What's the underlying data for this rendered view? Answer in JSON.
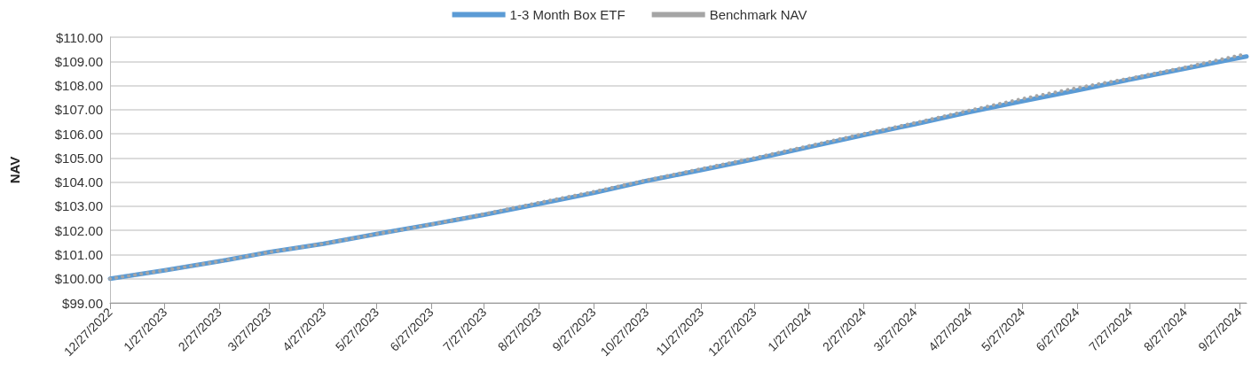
{
  "chart_data": {
    "type": "line",
    "ylabel": "NAV",
    "x": [
      "2022-12-27",
      "2023-01-27",
      "2023-02-27",
      "2023-03-27",
      "2023-04-27",
      "2023-05-27",
      "2023-06-27",
      "2023-07-27",
      "2023-08-27",
      "2023-09-27",
      "2023-10-27",
      "2023-11-27",
      "2023-12-27",
      "2024-01-27",
      "2024-02-27",
      "2024-03-27",
      "2024-04-27",
      "2024-05-27",
      "2024-06-27",
      "2024-07-27",
      "2024-08-27",
      "2024-09-27",
      "2024-10-01"
    ],
    "series": [
      {
        "name": "1-3 Month Box ETF",
        "color": "#5b9bd5",
        "line_style": "solid",
        "values": [
          100.0,
          100.35,
          100.72,
          101.1,
          101.45,
          101.85,
          102.25,
          102.65,
          103.1,
          103.55,
          104.05,
          104.5,
          104.95,
          105.45,
          105.95,
          106.4,
          106.9,
          107.35,
          107.8,
          108.25,
          108.7,
          109.15,
          109.2
        ]
      },
      {
        "name": "Benchmark NAV",
        "color": "#a5a5a5",
        "line_style": "dotted",
        "values": [
          100.0,
          100.35,
          100.72,
          101.1,
          101.45,
          101.85,
          102.25,
          102.68,
          103.15,
          103.6,
          104.08,
          104.55,
          105.0,
          105.5,
          106.0,
          106.45,
          106.97,
          107.45,
          107.9,
          108.3,
          108.75,
          109.25,
          109.3
        ]
      }
    ],
    "xlim": [
      "2022-12-27",
      "2024-10-01"
    ],
    "xticks": [
      {
        "value": "2022-12-27",
        "label": "12/27/2022"
      },
      {
        "value": "2023-01-27",
        "label": "1/27/2023"
      },
      {
        "value": "2023-02-27",
        "label": "2/27/2023"
      },
      {
        "value": "2023-03-27",
        "label": "3/27/2023"
      },
      {
        "value": "2023-04-27",
        "label": "4/27/2023"
      },
      {
        "value": "2023-05-27",
        "label": "5/27/2023"
      },
      {
        "value": "2023-06-27",
        "label": "6/27/2023"
      },
      {
        "value": "2023-07-27",
        "label": "7/27/2023"
      },
      {
        "value": "2023-08-27",
        "label": "8/27/2023"
      },
      {
        "value": "2023-09-27",
        "label": "9/27/2023"
      },
      {
        "value": "2023-10-27",
        "label": "10/27/2023"
      },
      {
        "value": "2023-11-27",
        "label": "11/27/2023"
      },
      {
        "value": "2023-12-27",
        "label": "12/27/2023"
      },
      {
        "value": "2024-01-27",
        "label": "1/27/2024"
      },
      {
        "value": "2024-02-27",
        "label": "2/27/2024"
      },
      {
        "value": "2024-03-27",
        "label": "3/27/2024"
      },
      {
        "value": "2024-04-27",
        "label": "4/27/2024"
      },
      {
        "value": "2024-05-27",
        "label": "5/27/2024"
      },
      {
        "value": "2024-06-27",
        "label": "6/27/2024"
      },
      {
        "value": "2024-07-27",
        "label": "7/27/2024"
      },
      {
        "value": "2024-08-27",
        "label": "8/27/2024"
      },
      {
        "value": "2024-09-27",
        "label": "9/27/2024"
      }
    ],
    "ylim": [
      99,
      110
    ],
    "yticks": [
      {
        "value": 99,
        "label": "$99.00"
      },
      {
        "value": 100,
        "label": "$100.00"
      },
      {
        "value": 101,
        "label": "$101.00"
      },
      {
        "value": 102,
        "label": "$102.00"
      },
      {
        "value": 103,
        "label": "$103.00"
      },
      {
        "value": 104,
        "label": "$104.00"
      },
      {
        "value": 105,
        "label": "$105.00"
      },
      {
        "value": 106,
        "label": "$106.00"
      },
      {
        "value": 107,
        "label": "$107.00"
      },
      {
        "value": 108,
        "label": "$108.00"
      },
      {
        "value": 109,
        "label": "$109.00"
      },
      {
        "value": 110,
        "label": "$110.00"
      }
    ],
    "grid": "y",
    "legend": "top",
    "marker": "none"
  }
}
